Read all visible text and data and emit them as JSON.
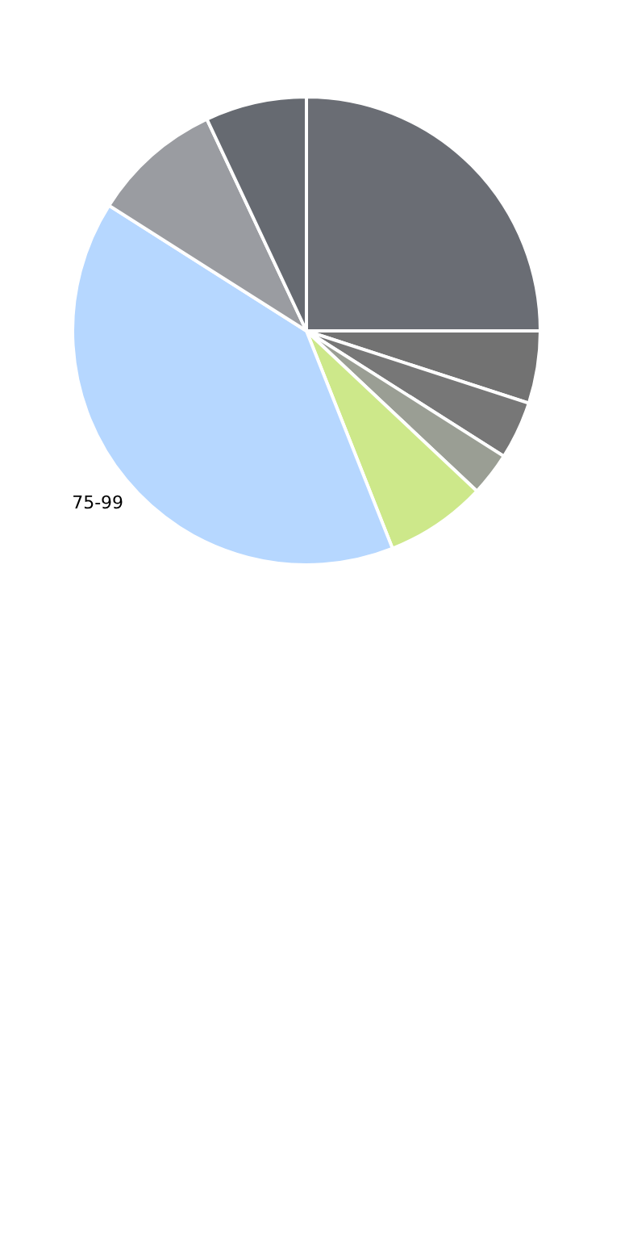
{
  "chart_data": {
    "type": "pie",
    "categories": [
      null,
      null,
      null,
      null,
      null,
      "75-99",
      null,
      null
    ],
    "values": [
      25,
      5,
      4,
      3,
      7,
      40,
      9,
      7
    ],
    "colors": [
      "#6a6d74",
      "#727272",
      "#777777",
      "#9a9e94",
      "#cde88a",
      "#b6d7ff",
      "#9a9ca1",
      "#666a71"
    ],
    "legend": false
  }
}
